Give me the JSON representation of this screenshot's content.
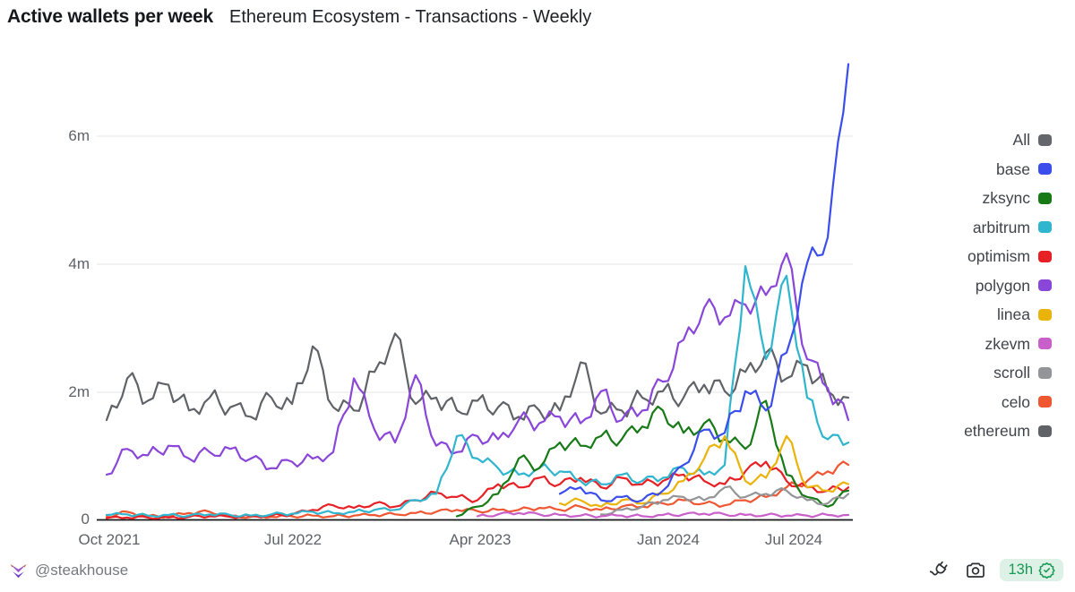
{
  "header": {
    "title": "Active wallets per week",
    "subtitle": "Ethereum Ecosystem - Transactions - Weekly"
  },
  "footer": {
    "handle": "@steakhouse",
    "age_badge": "13h",
    "badge_bg_color": "#def1e6",
    "badge_text_color": "#189a53"
  },
  "legend": {
    "position": "right",
    "items": [
      {
        "label": "All",
        "color": "#63676b"
      },
      {
        "label": "base",
        "color": "#3b4deb"
      },
      {
        "label": "zksync",
        "color": "#177a17"
      },
      {
        "label": "arbitrum",
        "color": "#2fb5cd"
      },
      {
        "label": "optimism",
        "color": "#e62025"
      },
      {
        "label": "polygon",
        "color": "#8a46d8"
      },
      {
        "label": "linea",
        "color": "#eab30a"
      },
      {
        "label": "zkevm",
        "color": "#c95fc9"
      },
      {
        "label": "scroll",
        "color": "#939598"
      },
      {
        "label": "celo",
        "color": "#ef5632"
      },
      {
        "label": "ethereum",
        "color": "#5f6368"
      }
    ]
  },
  "chart_data": {
    "type": "line",
    "title": "Active wallets per week",
    "subtitle": "Ethereum Ecosystem - Transactions - Weekly",
    "x_unit": "week (monthly samples listed)",
    "y_unit": "active wallets (millions)",
    "ylim": [
      0,
      7.3
    ],
    "y_ticks": [
      6,
      4,
      2,
      0
    ],
    "y_tick_labels": [
      "6m",
      "4m",
      "2m",
      "0"
    ],
    "x_tick_labels": [
      "Oct 2021",
      "Jul 2022",
      "Apr 2023",
      "Jan 2024",
      "Jul 2024"
    ],
    "grid": "horizontal",
    "legend_position": "right",
    "categories": [
      "Oct 2021",
      "Nov 2021",
      "Dec 2021",
      "Jan 2022",
      "Feb 2022",
      "Mar 2022",
      "Apr 2022",
      "May 2022",
      "Jun 2022",
      "Jul 2022",
      "Aug 2022",
      "Sep 2022",
      "Oct 2022",
      "Nov 2022",
      "Dec 2022",
      "Jan 2023",
      "Feb 2023",
      "Mar 2023",
      "Apr 2023",
      "May 2023",
      "Jun 2023",
      "Jul 2023",
      "Aug 2023",
      "Sep 2023",
      "Oct 2023",
      "Nov 2023",
      "Dec 2023",
      "Jan 2024",
      "Feb 2024",
      "Mar 2024",
      "Apr 2024",
      "May 2024",
      "Jun 2024",
      "Jul 2024",
      "Aug 2024",
      "Sep 2024",
      "Oct 2024"
    ],
    "series": [
      {
        "name": "ethereum",
        "values": [
          1.55,
          2.2,
          1.85,
          2.1,
          1.7,
          1.9,
          1.75,
          1.6,
          1.9,
          1.8,
          2.7,
          1.75,
          1.7,
          2.3,
          2.9,
          1.8,
          1.9,
          1.7,
          1.85,
          1.75,
          1.6,
          1.7,
          1.7,
          2.45,
          1.65,
          1.7,
          1.9,
          2.0,
          1.9,
          2.1,
          2.0,
          2.3,
          2.6,
          2.2,
          2.4,
          2.0,
          1.9
        ]
      },
      {
        "name": "polygon",
        "values": [
          0.7,
          1.1,
          1.0,
          1.15,
          0.95,
          1.05,
          1.1,
          0.95,
          0.8,
          0.9,
          0.95,
          1.05,
          2.2,
          1.4,
          1.2,
          2.25,
          1.15,
          1.05,
          1.3,
          1.25,
          1.55,
          1.5,
          1.6,
          1.5,
          2.0,
          1.55,
          1.7,
          2.15,
          2.8,
          3.3,
          3.15,
          3.35,
          3.5,
          4.15,
          2.5,
          2.05,
          1.55
        ]
      },
      {
        "name": "celo",
        "values": [
          0.04,
          0.12,
          0.05,
          0.05,
          0.1,
          0.12,
          0.05,
          0.04,
          0.04,
          0.05,
          0.06,
          0.05,
          0.06,
          0.07,
          0.08,
          0.1,
          0.12,
          0.15,
          0.13,
          0.15,
          0.15,
          0.18,
          0.15,
          0.2,
          0.15,
          0.2,
          0.2,
          0.25,
          0.3,
          0.25,
          0.22,
          0.3,
          0.35,
          0.5,
          0.6,
          0.75,
          0.85
        ]
      },
      {
        "name": "optimism",
        "values": [
          0.02,
          0.03,
          0.03,
          0.03,
          0.04,
          0.05,
          0.04,
          0.05,
          0.06,
          0.08,
          0.15,
          0.22,
          0.18,
          0.25,
          0.2,
          0.3,
          0.42,
          0.35,
          0.3,
          0.55,
          0.5,
          0.65,
          0.55,
          0.65,
          0.5,
          0.65,
          0.55,
          0.6,
          0.7,
          0.6,
          0.55,
          0.75,
          0.9,
          0.6,
          0.5,
          0.45,
          0.5
        ]
      },
      {
        "name": "arbitrum",
        "values": [
          0.07,
          0.08,
          0.06,
          0.07,
          0.06,
          0.08,
          0.07,
          0.06,
          0.08,
          0.09,
          0.12,
          0.1,
          0.12,
          0.15,
          0.15,
          0.3,
          0.4,
          1.3,
          0.95,
          0.8,
          0.7,
          0.8,
          0.75,
          0.6,
          0.55,
          0.7,
          0.6,
          0.65,
          0.8,
          0.7,
          0.85,
          3.95,
          2.5,
          3.8,
          1.9,
          1.25,
          1.2
        ]
      },
      {
        "name": "zksync",
        "values": [
          null,
          null,
          null,
          null,
          null,
          null,
          null,
          null,
          null,
          null,
          null,
          null,
          null,
          null,
          null,
          null,
          null,
          0.05,
          0.2,
          0.4,
          0.95,
          0.8,
          1.2,
          1.15,
          1.3,
          1.25,
          1.45,
          1.7,
          1.35,
          1.5,
          1.25,
          1.1,
          1.85,
          0.7,
          0.35,
          0.2,
          0.45
        ]
      },
      {
        "name": "linea",
        "values": [
          null,
          null,
          null,
          null,
          null,
          null,
          null,
          null,
          null,
          null,
          null,
          null,
          null,
          null,
          null,
          null,
          null,
          null,
          null,
          null,
          null,
          null,
          0.25,
          0.3,
          0.2,
          0.3,
          0.25,
          0.4,
          0.6,
          0.95,
          1.3,
          0.6,
          0.65,
          1.3,
          0.5,
          0.45,
          0.55
        ]
      },
      {
        "name": "scroll",
        "values": [
          null,
          null,
          null,
          null,
          null,
          null,
          null,
          null,
          null,
          null,
          null,
          null,
          null,
          null,
          null,
          null,
          null,
          null,
          null,
          null,
          null,
          null,
          null,
          null,
          0.08,
          0.15,
          0.2,
          0.3,
          0.35,
          0.3,
          0.5,
          0.35,
          0.4,
          0.45,
          0.3,
          0.25,
          0.4
        ]
      },
      {
        "name": "zkevm",
        "values": [
          null,
          null,
          null,
          null,
          null,
          null,
          null,
          null,
          null,
          null,
          null,
          null,
          null,
          null,
          null,
          null,
          null,
          null,
          0.05,
          0.08,
          0.1,
          0.08,
          0.07,
          0.06,
          0.05,
          0.06,
          0.05,
          0.07,
          0.08,
          0.09,
          0.08,
          0.07,
          0.07,
          0.06,
          0.06,
          0.07,
          0.07
        ]
      },
      {
        "name": "base",
        "values": [
          null,
          null,
          null,
          null,
          null,
          null,
          null,
          null,
          null,
          null,
          null,
          null,
          null,
          null,
          null,
          null,
          null,
          null,
          null,
          null,
          null,
          null,
          0.4,
          0.5,
          0.3,
          0.35,
          0.3,
          0.45,
          0.85,
          1.4,
          1.35,
          2.0,
          1.7,
          2.6,
          4.0,
          4.4,
          7.1
        ]
      }
    ]
  }
}
